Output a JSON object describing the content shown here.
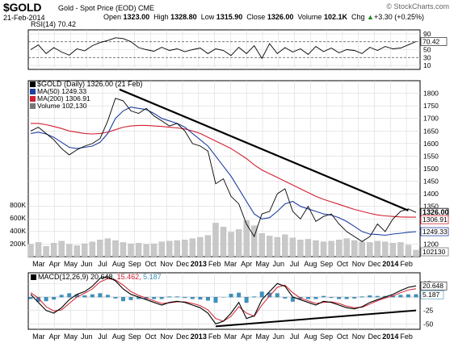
{
  "header": {
    "symbol": "$GOLD",
    "description": "Gold - Spot Price (EOD)",
    "exchange": "CME",
    "watermark": "© StockCharts.com",
    "date": "21-Feb-2014",
    "open_label": "Open",
    "open": "1323.00",
    "high_label": "High",
    "high": "1328.80",
    "low_label": "Low",
    "low": "1315.90",
    "close_label": "Close",
    "close": "1326.00",
    "volume_label": "Volume",
    "volume": "102.1K",
    "chg_label": "Chg",
    "chg": "+3.30 (+0.25%)",
    "chg_symbol": "▲"
  },
  "colors": {
    "price": "#000000",
    "ma50": "#1f3fa0",
    "ma200": "#d02030",
    "volume": "#c8c8c8",
    "macd": "#000000",
    "macd_signal": "#d02030",
    "histogram": "#3f8fb8",
    "grid": "#d9d9d9"
  },
  "chart_data": [
    {
      "type": "line",
      "panel": "rsi",
      "legend": "RSI(14) 70.42",
      "ylim": [
        0,
        100
      ],
      "yticks": [
        10,
        30,
        50,
        70,
        90
      ],
      "last_value_label": "70.42",
      "last_value": 70.42,
      "series": [
        {
          "name": "RSI(14)",
          "values": [
            50,
            62,
            40,
            55,
            44,
            36,
            52,
            47,
            60,
            68,
            73,
            80,
            78,
            70,
            55,
            50,
            46,
            56,
            48,
            52,
            45,
            50,
            54,
            40,
            52,
            48,
            35,
            56,
            40,
            60,
            28,
            65,
            40,
            55,
            44,
            52,
            38,
            58,
            45,
            54,
            42,
            50,
            48,
            40,
            56,
            48,
            58,
            52,
            54,
            62,
            70.42
          ]
        }
      ]
    },
    {
      "type": "line",
      "panel": "price",
      "title": "$GOLD (Daily) 1326.00 (21 Feb)",
      "ylim": [
        1150,
        1850
      ],
      "yticks": [
        1200,
        1250,
        1300,
        1350,
        1400,
        1450,
        1500,
        1550,
        1600,
        1650,
        1700,
        1750,
        1800
      ],
      "volume_ticks": [
        "200K",
        "400K",
        "600K",
        "800K"
      ],
      "volume_tick_values": [
        200000,
        400000,
        600000,
        800000
      ],
      "volume_max": 1000000,
      "legend": [
        {
          "name": "$GOLD (Daily) 1326.00 (21 Feb)"
        },
        {
          "name": "MA(50) 1249.33"
        },
        {
          "name": "MA(200) 1306.91"
        },
        {
          "name": "Volume 102,130"
        }
      ],
      "value_labels": {
        "price": "1326.00",
        "ma200": "1306.91",
        "ma50": "1249.33",
        "volume": "102130"
      },
      "value_numbers": {
        "price": 1326.0,
        "ma200": 1306.91,
        "ma50": 1249.33,
        "volume": 102130
      },
      "series": [
        {
          "name": "$GOLD",
          "values": [
            1650,
            1665,
            1640,
            1615,
            1580,
            1555,
            1575,
            1590,
            1600,
            1620,
            1690,
            1780,
            1770,
            1730,
            1720,
            1740,
            1710,
            1690,
            1670,
            1680,
            1650,
            1600,
            1590,
            1570,
            1440,
            1460,
            1390,
            1360,
            1280,
            1230,
            1320,
            1330,
            1400,
            1420,
            1330,
            1300,
            1350,
            1290,
            1310,
            1320,
            1280,
            1250,
            1230,
            1210,
            1230,
            1280,
            1250,
            1300,
            1330,
            1340,
            1326
          ]
        },
        {
          "name": "MA(50)",
          "values": [
            1640,
            1645,
            1638,
            1625,
            1605,
            1585,
            1580,
            1585,
            1590,
            1605,
            1640,
            1700,
            1730,
            1745,
            1740,
            1735,
            1720,
            1700,
            1690,
            1680,
            1665,
            1640,
            1615,
            1590,
            1550,
            1510,
            1470,
            1420,
            1370,
            1320,
            1300,
            1305,
            1330,
            1360,
            1370,
            1350,
            1340,
            1330,
            1320,
            1315,
            1305,
            1290,
            1270,
            1250,
            1240,
            1238,
            1235,
            1240,
            1243,
            1247,
            1249.33
          ]
        },
        {
          "name": "MA(200)",
          "values": [
            1680,
            1680,
            1675,
            1668,
            1660,
            1650,
            1645,
            1640,
            1638,
            1640,
            1645,
            1655,
            1665,
            1670,
            1672,
            1672,
            1670,
            1668,
            1665,
            1662,
            1658,
            1650,
            1640,
            1625,
            1610,
            1595,
            1580,
            1560,
            1540,
            1515,
            1495,
            1480,
            1465,
            1450,
            1435,
            1420,
            1405,
            1390,
            1378,
            1368,
            1358,
            1348,
            1338,
            1330,
            1322,
            1316,
            1312,
            1310,
            1308,
            1307,
            1306.91
          ]
        },
        {
          "name": "Volume",
          "values": [
            190000,
            220000,
            160000,
            210000,
            240000,
            190000,
            170000,
            200000,
            230000,
            260000,
            280000,
            250000,
            220000,
            200000,
            210000,
            190000,
            200000,
            230000,
            240000,
            250000,
            260000,
            280000,
            300000,
            330000,
            520000,
            460000,
            380000,
            420000,
            560000,
            480000,
            360000,
            320000,
            300000,
            340000,
            290000,
            260000,
            270000,
            250000,
            230000,
            240000,
            260000,
            280000,
            250000,
            230000,
            220000,
            240000,
            230000,
            210000,
            220000,
            180000,
            102130
          ]
        }
      ]
    },
    {
      "type": "line",
      "panel": "macd",
      "legend": "MACD(12,26,9) 20.648, 15.462, 5.187",
      "legend_prefix": "MACD(12,26,9) 20.648,",
      "legend_signal": "15.462,",
      "legend_hist": "5.187",
      "ylim": [
        -60,
        45
      ],
      "yticks": [
        -50,
        -25,
        25
      ],
      "value_labels": {
        "macd": "20.648",
        "signal": "15.462",
        "hist": "5.187"
      },
      "value_numbers": {
        "macd": 20.648,
        "signal": 15.462,
        "hist": 5.187
      },
      "series": [
        {
          "name": "MACD",
          "values": [
            5,
            -10,
            -25,
            -30,
            -20,
            -5,
            5,
            10,
            20,
            35,
            38,
            30,
            15,
            5,
            0,
            -5,
            -10,
            -15,
            -10,
            -8,
            -10,
            -15,
            -20,
            -30,
            -50,
            -45,
            -30,
            -10,
            -40,
            -35,
            -5,
            10,
            25,
            20,
            0,
            -5,
            -10,
            -15,
            -8,
            -10,
            -15,
            -20,
            -22,
            -18,
            -10,
            -5,
            0,
            5,
            12,
            18,
            20.648
          ]
        },
        {
          "name": "Signal",
          "values": [
            8,
            -2,
            -18,
            -26,
            -24,
            -12,
            0,
            7,
            15,
            28,
            34,
            32,
            22,
            10,
            3,
            -2,
            -7,
            -12,
            -11,
            -9,
            -9,
            -12,
            -16,
            -24,
            -40,
            -45,
            -36,
            -18,
            -30,
            -36,
            -15,
            2,
            18,
            22,
            8,
            -2,
            -7,
            -12,
            -10,
            -9,
            -12,
            -17,
            -20,
            -19,
            -13,
            -7,
            -2,
            2,
            8,
            13,
            15.462
          ]
        }
      ]
    }
  ],
  "xaxis": {
    "labels": [
      "Mar",
      "Apr",
      "May",
      "Jun",
      "Jul",
      "Aug",
      "Sep",
      "Oct",
      "Nov",
      "Dec",
      "2013",
      "Feb",
      "Mar",
      "Apr",
      "May",
      "Jun",
      "Jul",
      "Aug",
      "Sep",
      "Oct",
      "Nov",
      "Dec",
      "2014",
      "Feb"
    ],
    "bold": [
      "2013",
      "2014"
    ]
  }
}
